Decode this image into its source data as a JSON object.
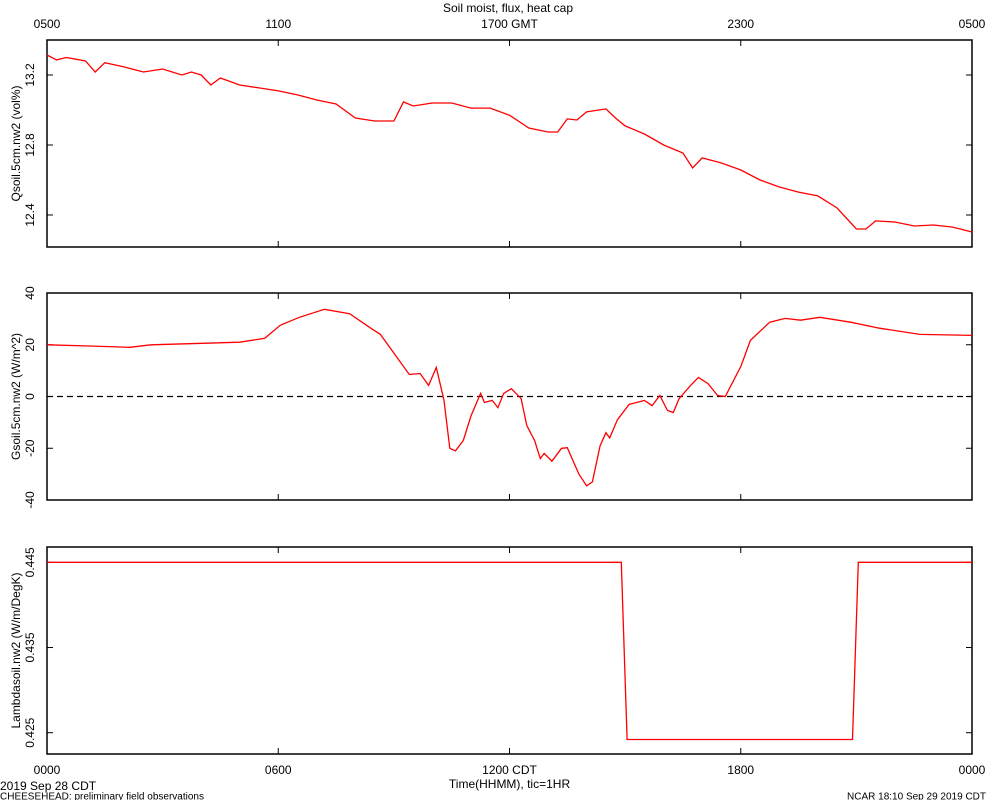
{
  "chart_data": [
    {
      "type": "line",
      "title": "Soil moist, flux, heat cap",
      "ylabel": "Qsoil.5cm.nw2 (vol%)",
      "color": "#ff0000",
      "xlim": [
        0,
        24
      ],
      "ylim": [
        12.217,
        13.4
      ],
      "yticks": [
        12.4,
        12.8,
        13.2
      ],
      "x2ticks": [
        {
          "value": 0,
          "label": "0500"
        },
        {
          "value": 6,
          "label": "1100"
        },
        {
          "value": 12,
          "label": "1700 GMT"
        },
        {
          "value": 18,
          "label": "2300"
        },
        {
          "value": 24,
          "label": "0500"
        }
      ],
      "x": [
        0,
        0.25,
        0.5,
        0.75,
        1,
        1.25,
        1.5,
        2,
        2.5,
        3,
        3.5,
        3.75,
        4,
        4.25,
        4.5,
        5,
        5.5,
        6,
        6.5,
        7,
        7.5,
        8,
        8.5,
        9,
        9.25,
        9.5,
        10,
        10.5,
        11,
        11.5,
        12,
        12.5,
        13,
        13.25,
        13.5,
        13.75,
        14,
        14.5,
        14.75,
        15,
        15.5,
        16,
        16.5,
        16.75,
        17,
        17.5,
        18,
        18.5,
        19,
        19.5,
        20,
        20.5,
        21,
        21.25,
        21.5,
        22,
        22.5,
        23,
        23.5,
        24
      ],
      "values": [
        13.314,
        13.286,
        13.3,
        13.29,
        13.28,
        13.217,
        13.27,
        13.246,
        13.217,
        13.234,
        13.2,
        13.217,
        13.2,
        13.143,
        13.183,
        13.143,
        13.126,
        13.109,
        13.086,
        13.057,
        13.034,
        12.954,
        12.937,
        12.937,
        13.046,
        13.023,
        13.04,
        13.04,
        13.011,
        13.011,
        12.97,
        12.897,
        12.874,
        12.874,
        12.949,
        12.943,
        12.989,
        13.006,
        12.954,
        12.909,
        12.863,
        12.8,
        12.754,
        12.669,
        12.726,
        12.697,
        12.657,
        12.6,
        12.56,
        12.531,
        12.509,
        12.44,
        12.32,
        12.32,
        12.366,
        12.36,
        12.337,
        12.343,
        12.331,
        12.303
      ]
    },
    {
      "type": "line",
      "ylabel": "Gsoil.5cm.nw2 (W/m^2)",
      "color": "#ff0000",
      "zero_line": true,
      "xlim": [
        0,
        24
      ],
      "ylim": [
        -40,
        40
      ],
      "yticks": [
        -40,
        -20,
        0,
        20,
        40
      ],
      "x": [
        0,
        1.1,
        2.15,
        2.7,
        5,
        5.65,
        6.05,
        6.55,
        7.2,
        7.85,
        8.4,
        8.65,
        9.4,
        9.68,
        9.9,
        10.1,
        10.3,
        10.45,
        10.6,
        10.8,
        11,
        11.25,
        11.35,
        11.55,
        11.7,
        11.85,
        12.05,
        12.3,
        12.45,
        12.65,
        12.8,
        12.9,
        13.1,
        13.35,
        13.5,
        13.7,
        13.8,
        14,
        14.15,
        14.35,
        14.5,
        14.6,
        14.8,
        15.1,
        15.5,
        15.7,
        15.9,
        16.1,
        16.25,
        16.4,
        16.7,
        16.9,
        17.15,
        17.4,
        17.6,
        18,
        18.25,
        18.75,
        19.15,
        19.55,
        20.05,
        20.85,
        21.6,
        22.65,
        24
      ],
      "values": [
        20,
        19.5,
        19,
        20,
        21,
        22.5,
        27.5,
        30.6,
        33.7,
        32,
        26.4,
        24,
        8.5,
        8.9,
        4.3,
        11.2,
        -1.5,
        -20,
        -21,
        -17,
        -7.5,
        1.2,
        -2.3,
        -1.5,
        -4.3,
        1.2,
        3,
        -0.8,
        -11.2,
        -17,
        -24,
        -22,
        -25,
        -20,
        -19.8,
        -26.6,
        -30,
        -34.5,
        -33,
        -19,
        -14,
        -16,
        -9,
        -3.1,
        -1.5,
        -3.5,
        0.4,
        -5.4,
        -6.2,
        -0.8,
        4.3,
        7.4,
        5,
        0.4,
        0,
        11.6,
        21.7,
        28.7,
        30.2,
        29.5,
        30.6,
        28.7,
        26.4,
        24,
        23.6
      ]
    },
    {
      "type": "line",
      "ylabel": "Lambdasoil.nw2 (W/m/DegK)",
      "color": "#ff0000",
      "xlabel": "Time(HHMM), tic=1HR",
      "xlim": [
        0,
        24
      ],
      "ylim": [
        0.4225,
        0.4468
      ],
      "yticks": [
        0.425,
        0.435,
        0.445
      ],
      "xticks": [
        {
          "value": 0,
          "label": "0000"
        },
        {
          "value": 6,
          "label": "0600"
        },
        {
          "value": 12,
          "label": "1200 CDT"
        },
        {
          "value": 18,
          "label": "1800"
        },
        {
          "value": 24,
          "label": "0000"
        }
      ],
      "x": [
        0,
        14.9,
        15.05,
        20.9,
        21.05,
        24
      ],
      "values": [
        0.445,
        0.445,
        0.4242,
        0.4242,
        0.445,
        0.445
      ]
    }
  ],
  "footer": {
    "date": "2019 Sep 28 CDT",
    "project": "CHEESEHEAD: preliminary field observations",
    "stamp": "NCAR 18:10 Sep 29 2019 CDT"
  }
}
